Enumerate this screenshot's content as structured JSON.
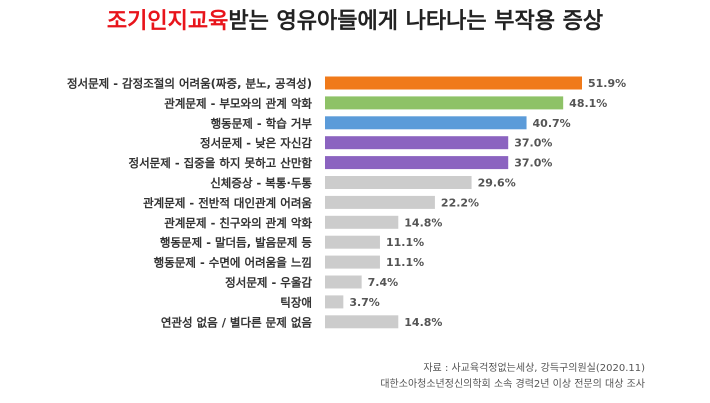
{
  "chart_data": {
    "type": "bar",
    "orientation": "horizontal",
    "title": [
      "조기인지교육",
      "받는 영유아들에게 나타나는 부작용 증상"
    ],
    "title_colors": [
      "#e8141b",
      "#222222"
    ],
    "categories": [
      "정서문제 - 감정조절의 어려움(짜증, 분노, 공격성)",
      "관계문제 - 부모와의 관계 악화",
      "행동문제 - 학습 거부",
      "정서문제 - 낮은 자신감",
      "정서문제 - 집중을 하지 못하고 산만함",
      "신체증상 - 복통·두통",
      "관계문제 - 전반적 대인관계 어려움",
      "관계문제 - 친구와의 관계 악화",
      "행동문제 - 말더듬, 발음문제 등",
      "행동문제 - 수면에 어려움을 느낌",
      "정서문제 - 우울감",
      "틱장애",
      "연관성 없음 / 별다른 문제 없음"
    ],
    "values": [
      51.9,
      48.1,
      40.7,
      37.0,
      37.0,
      29.6,
      22.2,
      14.8,
      11.1,
      11.1,
      7.4,
      3.7,
      14.8
    ],
    "value_labels": [
      "51.9%",
      "48.1%",
      "40.7%",
      "37.0%",
      "37.0%",
      "29.6%",
      "22.2%",
      "14.8%",
      "11.1%",
      "11.1%",
      "7.4%",
      "3.7%",
      "14.8%"
    ],
    "colors": [
      "#f07a1a",
      "#8ec267",
      "#5b9bd9",
      "#8b63c0",
      "#8b63c0",
      "#cccccc",
      "#cccccc",
      "#cccccc",
      "#cccccc",
      "#cccccc",
      "#cccccc",
      "#cccccc",
      "#cccccc"
    ],
    "source": [
      "자료 : 사교육걱정없는세상, 강득구의원실(2020.11)",
      "대한소아청소년정신의학회 소속 경력2년 이상 전문의 대상 조사"
    ]
  }
}
